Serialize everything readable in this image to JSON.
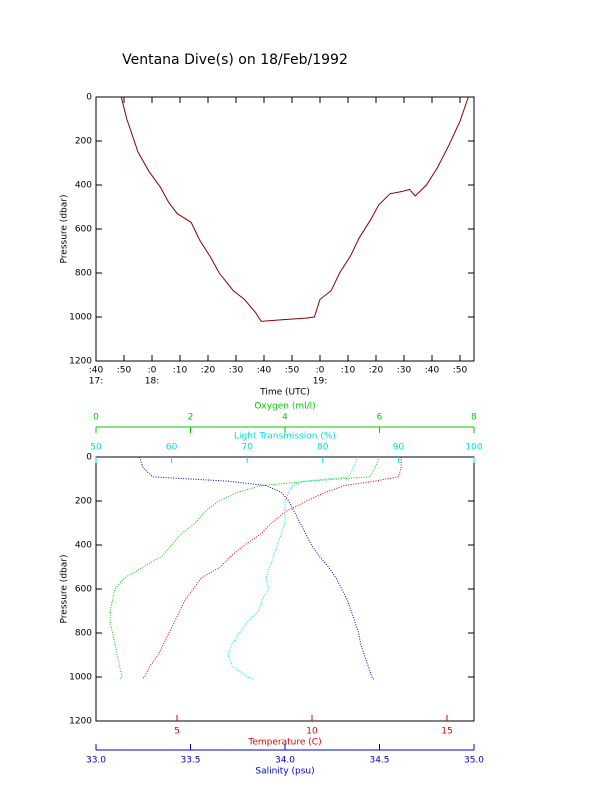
{
  "title": "Ventana Dive(s) on 18/Feb/1992",
  "chart_data": [
    {
      "type": "line",
      "xlabel": "Time (UTC)",
      "ylabel": "Pressure (dbar)",
      "color": "#8b0000",
      "x": [
        1069,
        1071,
        1075,
        1079,
        1083,
        1086,
        1089,
        1094,
        1097,
        1101,
        1104,
        1109,
        1113,
        1117,
        1119,
        1124,
        1129,
        1135,
        1138,
        1140,
        1144,
        1147,
        1151,
        1154,
        1158,
        1161,
        1165,
        1169,
        1172,
        1174,
        1178,
        1182,
        1186,
        1190,
        1193
      ],
      "values": [
        0,
        100,
        250,
        340,
        410,
        480,
        530,
        570,
        650,
        730,
        800,
        880,
        920,
        980,
        1020,
        1015,
        1010,
        1005,
        1000,
        920,
        880,
        800,
        720,
        640,
        560,
        490,
        440,
        430,
        420,
        450,
        400,
        320,
        220,
        110,
        0
      ],
      "xlim": [
        1060,
        1195
      ],
      "xticks": [
        {
          "value": 1060,
          "label": ":40"
        },
        {
          "value": 1070,
          "label": ":50"
        },
        {
          "value": 1080,
          "label": ":0"
        },
        {
          "value": 1090,
          "label": ":10"
        },
        {
          "value": 1100,
          "label": ":20"
        },
        {
          "value": 1110,
          "label": ":30"
        },
        {
          "value": 1120,
          "label": ":40"
        },
        {
          "value": 1130,
          "label": ":50"
        },
        {
          "value": 1140,
          "label": ":0"
        },
        {
          "value": 1150,
          "label": ":10"
        },
        {
          "value": 1160,
          "label": ":20"
        },
        {
          "value": 1170,
          "label": ":30"
        },
        {
          "value": 1180,
          "label": ":40"
        },
        {
          "value": 1190,
          "label": ":50"
        }
      ],
      "xtick_sublabels": [
        {
          "value": 1060,
          "label": "17:"
        },
        {
          "value": 1080,
          "label": "18:"
        },
        {
          "value": 1140,
          "label": "19:"
        }
      ],
      "ylim": [
        0,
        1200
      ],
      "y_inverted": true,
      "yticks": [
        0,
        200,
        400,
        600,
        800,
        1000,
        1200
      ]
    },
    {
      "type": "profile",
      "ylabel": "Pressure (dbar)",
      "y": [
        0,
        50,
        90,
        110,
        130,
        160,
        200,
        250,
        300,
        350,
        400,
        450,
        500,
        550,
        600,
        650,
        700,
        750,
        800,
        850,
        900,
        950,
        1000,
        1010
      ],
      "ylim": [
        0,
        1200
      ],
      "y_inverted": true,
      "yticks": [
        0,
        200,
        400,
        600,
        800,
        1000,
        1200
      ],
      "series": [
        {
          "name": "Temperature (C)",
          "color": "#e00000",
          "xlim": [
            2,
            16
          ],
          "xticks": [
            5,
            10,
            15
          ],
          "values": [
            13.3,
            13.3,
            13.2,
            12.3,
            11.2,
            10.5,
            9.8,
            9.0,
            8.5,
            8.1,
            7.5,
            7.0,
            6.6,
            5.9,
            5.6,
            5.3,
            5.1,
            4.9,
            4.7,
            4.5,
            4.3,
            4.0,
            3.8,
            3.7
          ]
        },
        {
          "name": "Salinity (psu)",
          "color": "#0000cc",
          "xlim": [
            33,
            35
          ],
          "xticks": [
            {
              "value": 33,
              "label": "33.0"
            },
            {
              "value": 33.5,
              "label": "33.5"
            },
            {
              "value": 34,
              "label": "34.0"
            },
            {
              "value": 34.5,
              "label": "34.5"
            },
            {
              "value": 35,
              "label": "35.0"
            }
          ],
          "values": [
            33.23,
            33.25,
            33.3,
            33.7,
            33.9,
            33.98,
            34.02,
            34.05,
            34.08,
            34.11,
            34.14,
            34.18,
            34.23,
            34.27,
            34.3,
            34.33,
            34.35,
            34.37,
            34.39,
            34.4,
            34.42,
            34.44,
            34.46,
            34.47
          ]
        },
        {
          "name": "Oxygen (ml/l)",
          "color": "#00cc00",
          "xlim": [
            0,
            8
          ],
          "xticks": [
            0,
            2,
            4,
            6,
            8
          ],
          "values": [
            6.0,
            5.9,
            5.8,
            4.5,
            3.5,
            3.0,
            2.6,
            2.3,
            2.1,
            1.8,
            1.6,
            1.4,
            1.0,
            0.6,
            0.4,
            0.35,
            0.3,
            0.3,
            0.35,
            0.4,
            0.45,
            0.5,
            0.55,
            0.5
          ]
        },
        {
          "name": "Light Transmission (%)",
          "color": "#00e0e0",
          "xlim": [
            50,
            100
          ],
          "xticks": [
            50,
            60,
            70,
            80,
            90,
            100
          ],
          "values": [
            84.7,
            84.0,
            83.5,
            77.5,
            76,
            75.5,
            75,
            75,
            75,
            74.5,
            74,
            73.5,
            73,
            72.5,
            72.8,
            72,
            71.5,
            70,
            69,
            68,
            67.5,
            68,
            70,
            71
          ]
        }
      ]
    }
  ]
}
